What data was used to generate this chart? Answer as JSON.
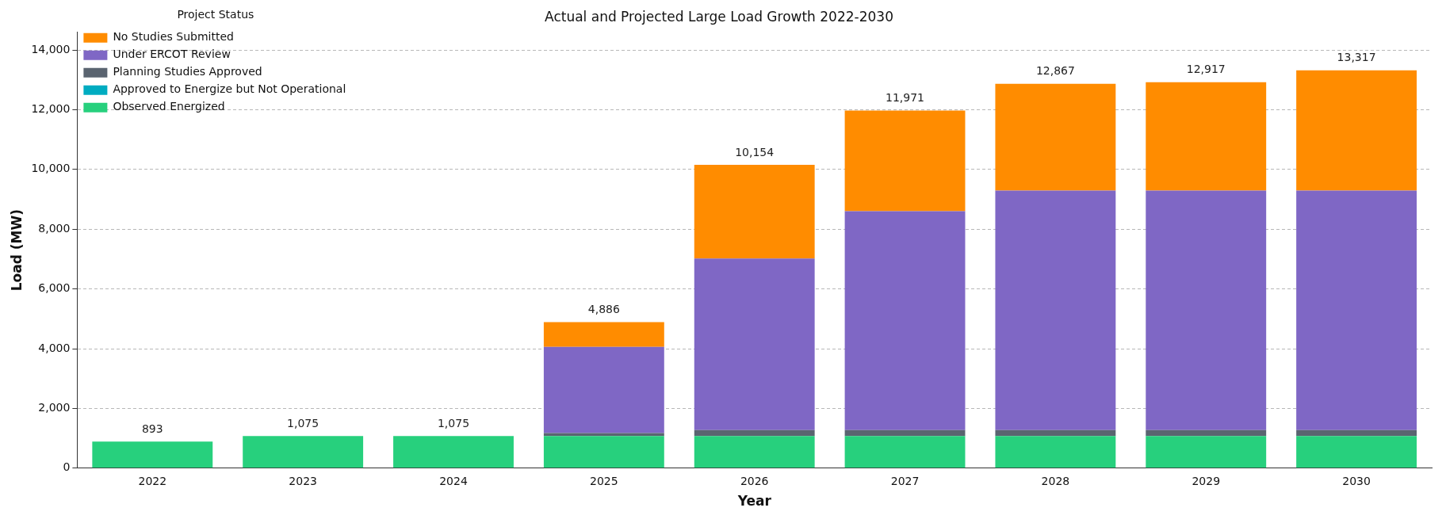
{
  "chart_data": {
    "type": "bar",
    "title": "Actual and Projected Large Load Growth 2022-2030",
    "xlabel": "Year",
    "ylabel": "Load (MW)",
    "legend_title": "Project Status",
    "categories": [
      "2022",
      "2023",
      "2024",
      "2025",
      "2026",
      "2027",
      "2028",
      "2029",
      "2030"
    ],
    "series": [
      {
        "name": "Observed Energized",
        "color": "#27d07d",
        "values": [
          893,
          1075,
          1075,
          1075,
          1075,
          1075,
          1075,
          1075,
          1075
        ]
      },
      {
        "name": "Approved to Energize but Not Operational",
        "color": "#00acc1",
        "values": [
          0,
          0,
          0,
          0,
          0,
          0,
          0,
          0,
          0
        ]
      },
      {
        "name": "Planning Studies Approved",
        "color": "#5a6470",
        "values": [
          0,
          0,
          0,
          100,
          200,
          200,
          200,
          200,
          200
        ]
      },
      {
        "name": "Under ERCOT Review",
        "color": "#7f67c5",
        "values": [
          0,
          0,
          0,
          2885,
          5745,
          7325,
          8015,
          8015,
          8015
        ]
      },
      {
        "name": "No Studies Submitted",
        "color": "#ff8c00",
        "values": [
          0,
          0,
          0,
          826,
          3134,
          3371,
          3577,
          3627,
          4027
        ]
      }
    ],
    "totals": [
      "893",
      "1,075",
      "1,075",
      "4,886",
      "10,154",
      "11,971",
      "12,867",
      "12,917",
      "13,317"
    ],
    "stacked": true,
    "ylim": [
      0,
      14600
    ],
    "yticks": [
      {
        "value": 0,
        "label": "0"
      },
      {
        "value": 2000,
        "label": "2,000"
      },
      {
        "value": 4000,
        "label": "4,000"
      },
      {
        "value": 6000,
        "label": "6,000"
      },
      {
        "value": 8000,
        "label": "8,000"
      },
      {
        "value": 10000,
        "label": "10,000"
      },
      {
        "value": 12000,
        "label": "12,000"
      },
      {
        "value": 14000,
        "label": "14,000"
      }
    ],
    "grid": "y",
    "legend": "top left"
  }
}
